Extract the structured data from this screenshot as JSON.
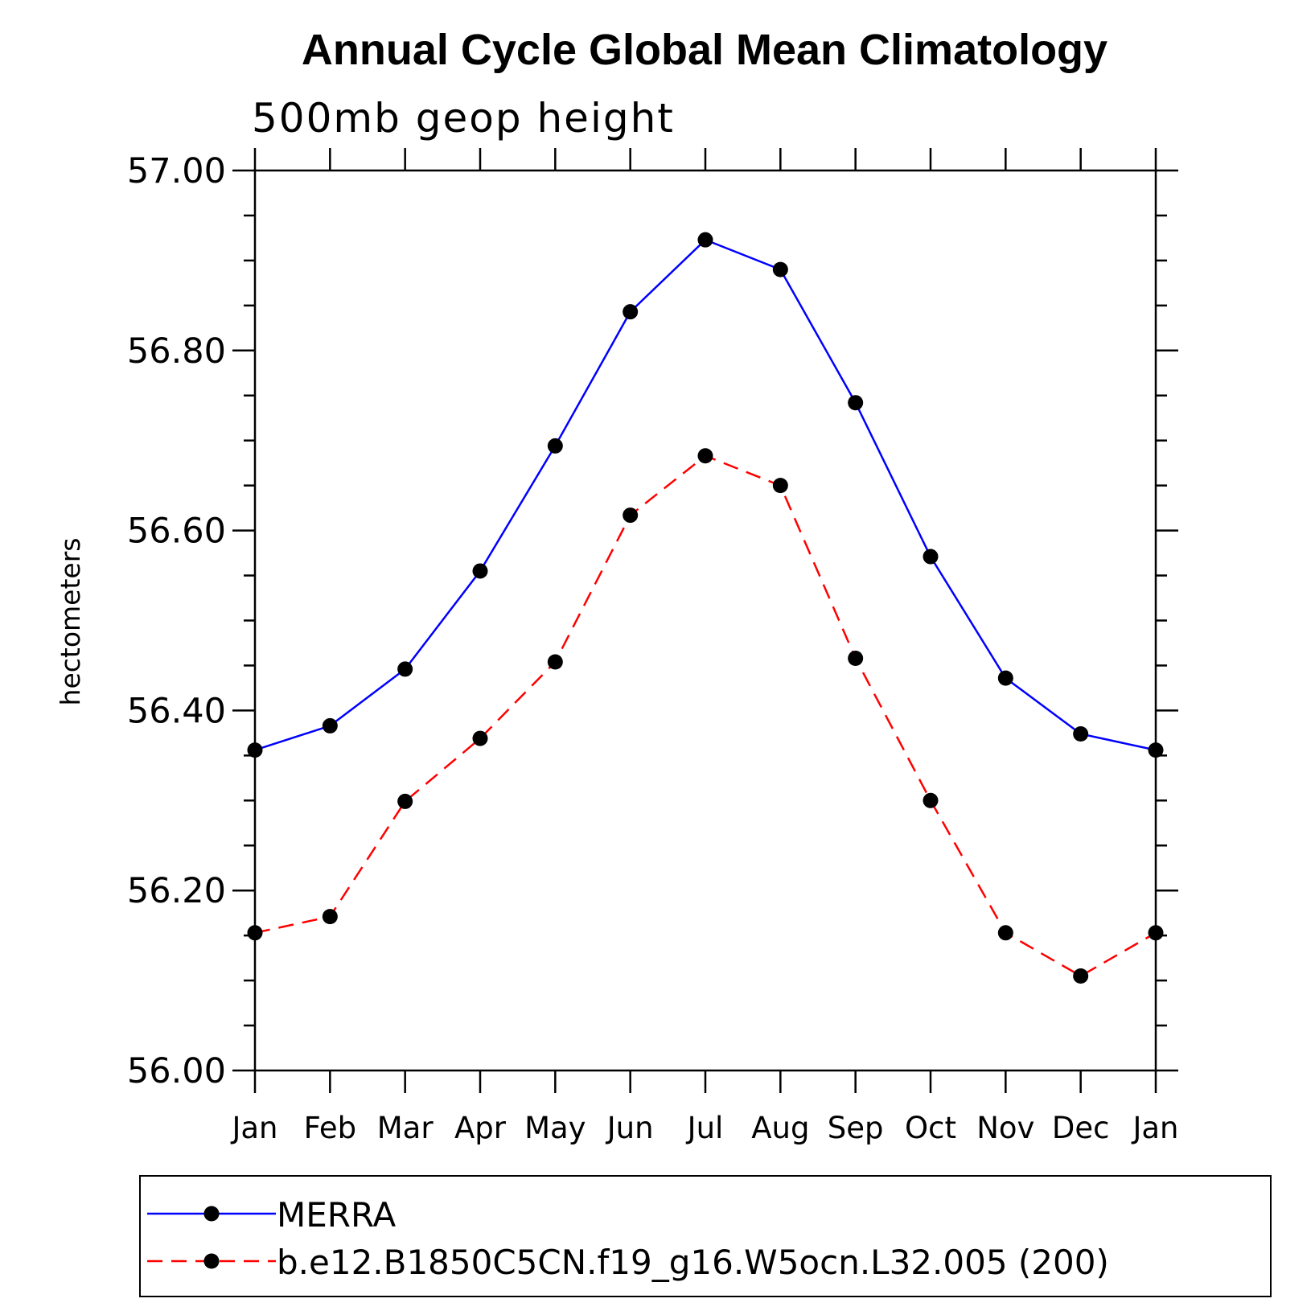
{
  "chart_data": {
    "type": "line",
    "title": "Annual Cycle Global Mean Climatology",
    "subtitle": "500mb geop height",
    "ylabel": "hectometers",
    "xlabel": "",
    "ylim": [
      56.0,
      57.0
    ],
    "yticks": [
      "56.00",
      "56.20",
      "56.40",
      "56.60",
      "56.80",
      "57.00"
    ],
    "categories": [
      "Jan",
      "Feb",
      "Mar",
      "Apr",
      "May",
      "Jun",
      "Jul",
      "Aug",
      "Sep",
      "Oct",
      "Nov",
      "Dec",
      "Jan"
    ],
    "series": [
      {
        "name": "MERRA",
        "color": "#0000ff",
        "dash": "solid",
        "values": [
          56.356,
          56.383,
          56.446,
          56.555,
          56.694,
          56.843,
          56.923,
          56.89,
          56.742,
          56.571,
          56.436,
          56.374,
          56.356
        ]
      },
      {
        "name": "b.e12.B1850C5CN.f19_g16.W5ocn.L32.005 (200)",
        "color": "#ff0000",
        "dash": "dashed",
        "values": [
          56.153,
          56.171,
          56.299,
          56.369,
          56.454,
          56.617,
          56.683,
          56.65,
          56.458,
          56.3,
          56.153,
          56.105,
          56.153
        ]
      }
    ],
    "legend_position": "bottom"
  }
}
